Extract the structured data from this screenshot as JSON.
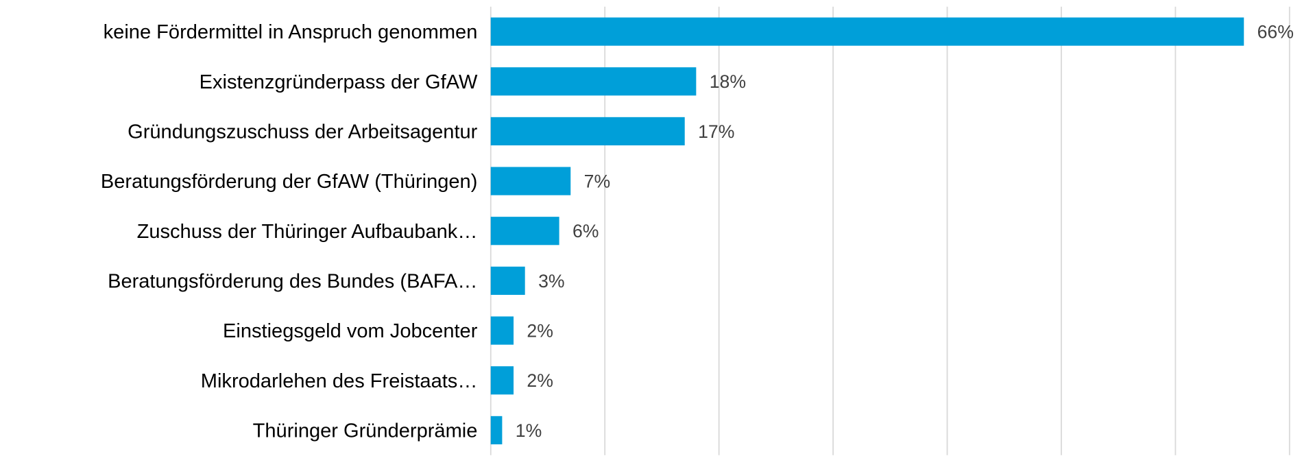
{
  "chart_data": {
    "type": "bar",
    "orientation": "horizontal",
    "categories": [
      "keine Fördermittel in Anspruch genommen",
      "Existenzgründerpass der GfAW",
      "Gründungszuschuss der Arbeitsagentur",
      "Beratungsförderung der GfAW (Thüringen)",
      "Zuschuss der Thüringer Aufbaubank…",
      "Beratungsförderung des Bundes (BAFA…",
      "Einstiegsgeld vom Jobcenter",
      "Mikrodarlehen des Freistaats…",
      "Thüringer Gründerprämie"
    ],
    "values": [
      66,
      18,
      17,
      7,
      6,
      3,
      2,
      2,
      1
    ],
    "value_labels": [
      "66%",
      "18%",
      "17%",
      "7%",
      "6%",
      "3%",
      "2%",
      "2%",
      "1%"
    ],
    "color": "#009fd9",
    "xlim": [
      0,
      70
    ],
    "xticks": [
      0,
      10,
      20,
      30,
      40,
      50,
      60,
      70
    ],
    "grid": true
  }
}
